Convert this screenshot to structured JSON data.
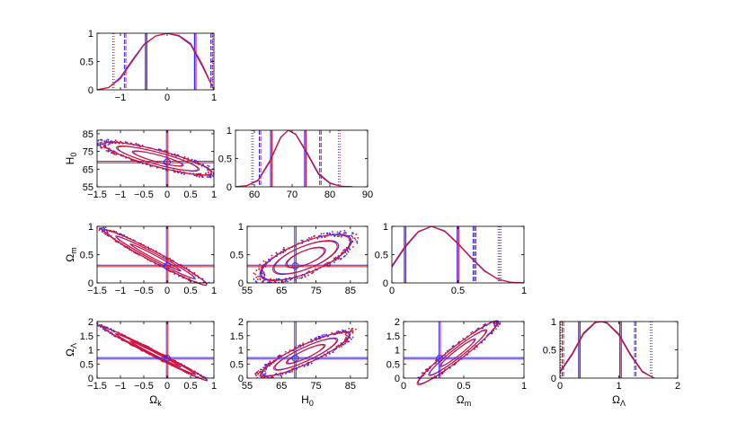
{
  "figure": {
    "type": "corner-plot",
    "series": [
      {
        "name": "",
        "color": "#2b2bff"
      },
      {
        "name": "",
        "color": "#e8102a"
      }
    ]
  },
  "chart_data": [
    {
      "type": "line",
      "panel": "Omega_k 1D",
      "xlim": [
        -1.5,
        1
      ],
      "ylim": [
        0,
        1
      ],
      "xticks": [
        "−1",
        "0",
        "1"
      ],
      "yticks": [
        "0",
        "0.5",
        "1"
      ],
      "xlabel": "",
      "ylabel": "",
      "x": [
        -1.5,
        -1.25,
        -1.0,
        -0.75,
        -0.5,
        -0.25,
        0.0,
        0.25,
        0.5,
        0.75,
        1.0
      ],
      "series": [
        {
          "values": [
            0.0,
            0.04,
            0.22,
            0.52,
            0.8,
            0.95,
            1.0,
            0.95,
            0.8,
            0.42,
            0.0
          ]
        },
        {
          "values": [
            0.0,
            0.04,
            0.2,
            0.5,
            0.79,
            0.95,
            1.0,
            0.96,
            0.82,
            0.45,
            0.0
          ]
        }
      ],
      "markers": {
        "one_sigma": [
          -0.45,
          0.6
        ],
        "two_sigma": [
          -0.9,
          0.95
        ],
        "three_sigma": [
          -1.15,
          0.99
        ]
      }
    },
    {
      "type": "line",
      "panel": "H0 1D",
      "xlim": [
        55,
        90
      ],
      "ylim": [
        0,
        1
      ],
      "xticks": [
        "60",
        "70",
        "80",
        "90"
      ],
      "yticks": [
        "0",
        "0.5",
        "1"
      ],
      "xlabel": "",
      "ylabel": "",
      "x": [
        55,
        58,
        61,
        64,
        67,
        69,
        71,
        74,
        77,
        80,
        83,
        86
      ],
      "series": [
        {
          "values": [
            0.0,
            0.02,
            0.12,
            0.45,
            0.88,
            1.0,
            0.92,
            0.58,
            0.22,
            0.06,
            0.01,
            0.0
          ]
        },
        {
          "values": [
            0.0,
            0.02,
            0.11,
            0.43,
            0.87,
            1.0,
            0.93,
            0.6,
            0.24,
            0.07,
            0.01,
            0.0
          ]
        }
      ],
      "markers": {
        "one_sigma": [
          64.5,
          73.5
        ],
        "two_sigma": [
          61.5,
          77.5
        ],
        "three_sigma": [
          59.5,
          82.5
        ]
      }
    },
    {
      "type": "line",
      "panel": "Omega_m 1D",
      "xlim": [
        0,
        1
      ],
      "ylim": [
        0,
        1
      ],
      "xticks": [
        "0",
        "0.5",
        "1"
      ],
      "yticks": [
        "0",
        "0.5",
        "1"
      ],
      "xlabel": "",
      "ylabel": "",
      "x": [
        0.0,
        0.1,
        0.2,
        0.3,
        0.4,
        0.5,
        0.6,
        0.7,
        0.8,
        0.9,
        1.0
      ],
      "series": [
        {
          "values": [
            0.28,
            0.63,
            0.9,
            1.0,
            0.92,
            0.7,
            0.45,
            0.22,
            0.07,
            0.01,
            0.0
          ]
        },
        {
          "values": [
            0.3,
            0.65,
            0.91,
            1.0,
            0.91,
            0.69,
            0.44,
            0.21,
            0.07,
            0.01,
            0.0
          ]
        }
      ],
      "markers": {
        "one_sigma": [
          0.1,
          0.5
        ],
        "two_sigma": [
          0.62,
          0.63
        ],
        "three_sigma": [
          0.81,
          0.82
        ]
      }
    },
    {
      "type": "line",
      "panel": "Omega_Lambda 1D",
      "xlim": [
        0,
        2
      ],
      "ylim": [
        0,
        1
      ],
      "xticks": [
        "0",
        "1",
        "2"
      ],
      "yticks": [
        "0",
        "0.5",
        "1"
      ],
      "xlabel": "Ω_Λ",
      "ylabel": "",
      "x": [
        0.0,
        0.2,
        0.4,
        0.6,
        0.7,
        0.8,
        1.0,
        1.2,
        1.4,
        1.6
      ],
      "series": [
        {
          "values": [
            0.1,
            0.4,
            0.78,
            0.98,
            1.0,
            0.98,
            0.78,
            0.42,
            0.12,
            0.0
          ]
        },
        {
          "values": [
            0.12,
            0.42,
            0.8,
            0.99,
            1.0,
            0.97,
            0.76,
            0.4,
            0.11,
            0.0
          ]
        }
      ],
      "markers": {
        "one_sigma": [
          0.33,
          1.03
        ],
        "two_sigma": [
          0.05,
          1.28
        ],
        "three_sigma": [
          0.02,
          1.55
        ]
      }
    },
    {
      "type": "contour",
      "panel": "H0 vs Omega_k",
      "xlim": [
        -1.5,
        1
      ],
      "ylim": [
        55,
        87
      ],
      "xticks": [
        "−1.5",
        "−1",
        "−0.5",
        "0",
        "0.5",
        "1"
      ],
      "yticks": [
        "55",
        "65",
        "75",
        "85"
      ],
      "xlabel": "",
      "ylabel": "H_0",
      "best_fit": [
        0,
        69
      ],
      "ellipse": {
        "center": [
          -0.2,
          71
        ],
        "semi": [
          0.55,
          0.9,
          1.2
        ],
        "minor": [
          2.0,
          3.4,
          4.6
        ],
        "angle_deg": -15
      }
    },
    {
      "type": "contour",
      "panel": "Omega_m vs Omega_k",
      "xlim": [
        -1.5,
        1
      ],
      "ylim": [
        0,
        1
      ],
      "xticks": [
        "−1.5",
        "−1",
        "−0.5",
        "0",
        "0.5",
        "1"
      ],
      "yticks": [
        "0",
        "0.5",
        "1"
      ],
      "xlabel": "",
      "ylabel": "Ω_m",
      "best_fit": [
        0,
        0.3
      ],
      "ellipse": {
        "center": [
          -0.25,
          0.45
        ],
        "semi": [
          0.6,
          0.95,
          1.25
        ],
        "minor": [
          0.03,
          0.06,
          0.09
        ],
        "angle_deg": -28
      }
    },
    {
      "type": "contour",
      "panel": "Omega_m vs H0",
      "xlim": [
        55,
        90
      ],
      "ylim": [
        0,
        1
      ],
      "xticks": [
        "55",
        "65",
        "75",
        "85"
      ],
      "yticks": [
        "0",
        "0.5",
        "1"
      ],
      "xlabel": "",
      "ylabel": "",
      "best_fit": [
        69,
        0.3
      ],
      "ellipse": {
        "center": [
          72,
          0.45
        ],
        "semi": [
          6,
          10,
          14
        ],
        "minor": [
          0.12,
          0.2,
          0.27
        ],
        "angle_deg": 22
      }
    },
    {
      "type": "contour",
      "panel": "Omega_Lambda vs Omega_k",
      "xlim": [
        -1.5,
        1
      ],
      "ylim": [
        0,
        2
      ],
      "xticks": [
        "−1.5",
        "−1",
        "−0.5",
        "0",
        "0.5",
        "1"
      ],
      "yticks": [
        "0",
        "0.5",
        "1",
        "1.5",
        "2"
      ],
      "xlabel": "Ω_k",
      "ylabel": "Ω_Λ",
      "best_fit": [
        0,
        0.7
      ],
      "ellipse": {
        "center": [
          -0.25,
          0.85
        ],
        "semi": [
          0.6,
          0.95,
          1.25
        ],
        "minor": [
          0.04,
          0.07,
          0.1
        ],
        "angle_deg": -27
      }
    },
    {
      "type": "contour",
      "panel": "Omega_Lambda vs H0",
      "xlim": [
        55,
        90
      ],
      "ylim": [
        0,
        2
      ],
      "xticks": [
        "55",
        "65",
        "75",
        "85"
      ],
      "yticks": [
        "0",
        "0.5",
        "1",
        "1.5",
        "2"
      ],
      "xlabel": "H_0",
      "ylabel": "",
      "best_fit": [
        69,
        0.7
      ],
      "ellipse": {
        "center": [
          72,
          0.85
        ],
        "semi": [
          6,
          10,
          14
        ],
        "minor": [
          0.14,
          0.24,
          0.33
        ],
        "angle_deg": 25
      }
    },
    {
      "type": "contour",
      "panel": "Omega_Lambda vs Omega_m",
      "xlim": [
        0,
        1
      ],
      "ylim": [
        0,
        2
      ],
      "xticks": [
        "0",
        "0.5",
        "1"
      ],
      "yticks": [
        "0",
        "0.5",
        "1",
        "1.5",
        "2"
      ],
      "xlabel": "Ω_m",
      "ylabel": "",
      "best_fit": [
        0.3,
        0.7
      ],
      "ellipse": {
        "center": [
          0.45,
          0.9
        ],
        "semi": [
          0.18,
          0.3,
          0.42
        ],
        "minor": [
          0.1,
          0.17,
          0.24
        ],
        "angle_deg": 38
      }
    }
  ]
}
